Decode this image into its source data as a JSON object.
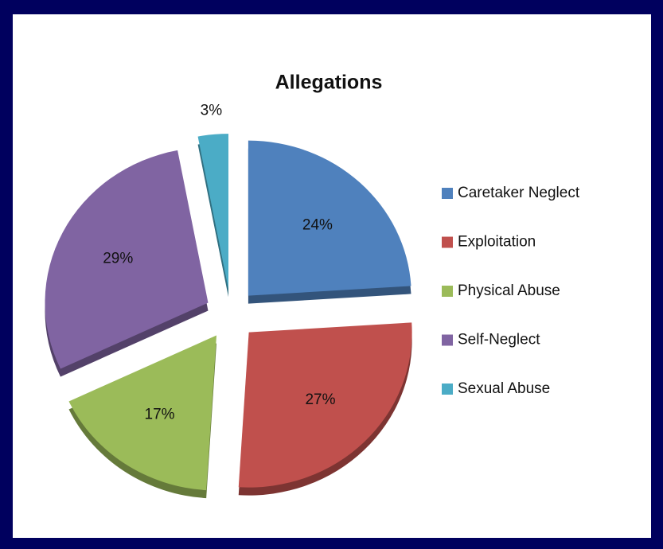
{
  "chart_data": {
    "type": "pie",
    "title": "Allegations",
    "categories": [
      "Caretaker Neglect",
      "Exploitation",
      "Physical Abuse",
      "Self-Neglect",
      "Sexual Abuse"
    ],
    "values": [
      24,
      27,
      17,
      29,
      3
    ],
    "value_labels": [
      "24%",
      "27%",
      "17%",
      "29%",
      "3%"
    ],
    "colors": [
      "#4f81bd",
      "#c0504d",
      "#9bbb59",
      "#8064a2",
      "#4bacc6"
    ],
    "legend": "right"
  }
}
